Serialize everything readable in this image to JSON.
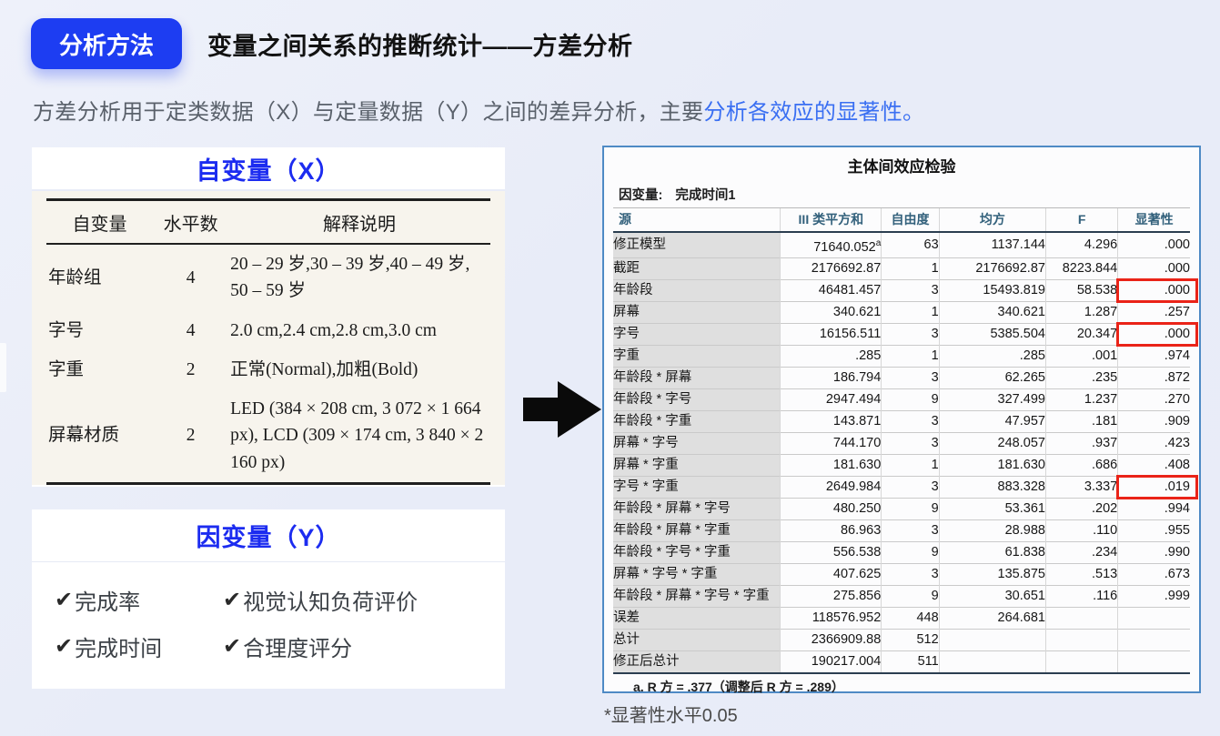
{
  "header": {
    "badge": "分析方法",
    "title": "变量之间关系的推断统计——方差分析",
    "subtitle_plain": "方差分析用于定类数据（X）与定量数据（Y）之间的差异分析，主要",
    "subtitle_highlight": "分析各效应的显著性。"
  },
  "x_panel": {
    "title": "自变量（X）",
    "table": {
      "headers": [
        "自变量",
        "水平数",
        "解释说明"
      ],
      "rows": [
        [
          "年龄组",
          "4",
          "20 – 29 岁,30 – 39 岁,40 – 49 岁, 50 – 59 岁"
        ],
        [
          "字号",
          "4",
          "2.0 cm,2.4 cm,2.8 cm,3.0 cm"
        ],
        [
          "字重",
          "2",
          "正常(Normal),加粗(Bold)"
        ],
        [
          "屏幕材质",
          "2",
          "LED (384 × 208 cm, 3 072 × 1 664 px), LCD (309 × 174 cm, 3 840 × 2 160 px)"
        ]
      ]
    }
  },
  "y_panel": {
    "title": "因变量（Y）",
    "check_glyph": "✔",
    "items": [
      "完成率",
      "视觉认知负荷评价",
      "完成时间",
      "合理度评分"
    ]
  },
  "spss": {
    "title": "主体间效应检验",
    "dependent_label": "因变量:",
    "dependent_value": "完成时间1",
    "columns": [
      "源",
      "III 类平方和",
      "自由度",
      "均方",
      "F",
      "显著性"
    ],
    "rows": [
      {
        "source": "修正模型",
        "ss": "71640.052",
        "ss_sup": "a",
        "df": "63",
        "ms": "1137.144",
        "f": "4.296",
        "sig": ".000",
        "highlight": false
      },
      {
        "source": "截距",
        "ss": "2176692.87",
        "df": "1",
        "ms": "2176692.87",
        "f": "8223.844",
        "sig": ".000",
        "highlight": false
      },
      {
        "source": "年龄段",
        "ss": "46481.457",
        "df": "3",
        "ms": "15493.819",
        "f": "58.538",
        "sig": ".000",
        "highlight": true
      },
      {
        "source": "屏幕",
        "ss": "340.621",
        "df": "1",
        "ms": "340.621",
        "f": "1.287",
        "sig": ".257",
        "highlight": false
      },
      {
        "source": "字号",
        "ss": "16156.511",
        "df": "3",
        "ms": "5385.504",
        "f": "20.347",
        "sig": ".000",
        "highlight": true
      },
      {
        "source": "字重",
        "ss": ".285",
        "df": "1",
        "ms": ".285",
        "f": ".001",
        "sig": ".974",
        "highlight": false
      },
      {
        "source": "年龄段 * 屏幕",
        "ss": "186.794",
        "df": "3",
        "ms": "62.265",
        "f": ".235",
        "sig": ".872",
        "highlight": false
      },
      {
        "source": "年龄段 * 字号",
        "ss": "2947.494",
        "df": "9",
        "ms": "327.499",
        "f": "1.237",
        "sig": ".270",
        "highlight": false
      },
      {
        "source": "年龄段 * 字重",
        "ss": "143.871",
        "df": "3",
        "ms": "47.957",
        "f": ".181",
        "sig": ".909",
        "highlight": false
      },
      {
        "source": "屏幕 * 字号",
        "ss": "744.170",
        "df": "3",
        "ms": "248.057",
        "f": ".937",
        "sig": ".423",
        "highlight": false
      },
      {
        "source": "屏幕 * 字重",
        "ss": "181.630",
        "df": "1",
        "ms": "181.630",
        "f": ".686",
        "sig": ".408",
        "highlight": false
      },
      {
        "source": "字号 * 字重",
        "ss": "2649.984",
        "df": "3",
        "ms": "883.328",
        "f": "3.337",
        "sig": ".019",
        "highlight": true
      },
      {
        "source": "年龄段 * 屏幕 * 字号",
        "ss": "480.250",
        "df": "9",
        "ms": "53.361",
        "f": ".202",
        "sig": ".994",
        "highlight": false
      },
      {
        "source": "年龄段 * 屏幕 * 字重",
        "ss": "86.963",
        "df": "3",
        "ms": "28.988",
        "f": ".110",
        "sig": ".955",
        "highlight": false
      },
      {
        "source": "年龄段 * 字号 * 字重",
        "ss": "556.538",
        "df": "9",
        "ms": "61.838",
        "f": ".234",
        "sig": ".990",
        "highlight": false
      },
      {
        "source": "屏幕 * 字号 * 字重",
        "ss": "407.625",
        "df": "3",
        "ms": "135.875",
        "f": ".513",
        "sig": ".673",
        "highlight": false
      },
      {
        "source": "年龄段 * 屏幕 * 字号 * 字重",
        "ss": "275.856",
        "df": "9",
        "ms": "30.651",
        "f": ".116",
        "sig": ".999",
        "highlight": false
      },
      {
        "source": "误差",
        "ss": "118576.952",
        "df": "448",
        "ms": "264.681",
        "f": "",
        "sig": "",
        "highlight": false
      },
      {
        "source": "总计",
        "ss": "2366909.88",
        "df": "512",
        "ms": "",
        "f": "",
        "sig": "",
        "highlight": false
      },
      {
        "source": "修正后总计",
        "ss": "190217.004",
        "df": "511",
        "ms": "",
        "f": "",
        "sig": "",
        "highlight": false
      }
    ],
    "footnote": "a. R 方 = .377（调整后 R 方 = .289）"
  },
  "note": "*显著性水平0.05",
  "colors": {
    "badge_blue": "#1d3df2",
    "heading_blue": "#1c2cf0",
    "link_blue": "#3a6ff2",
    "table_border_blue": "#4e8ac5",
    "label_slate": "#2f5b74",
    "highlight_red": "#ea2318",
    "arrow_black": "#0a0a0a"
  }
}
